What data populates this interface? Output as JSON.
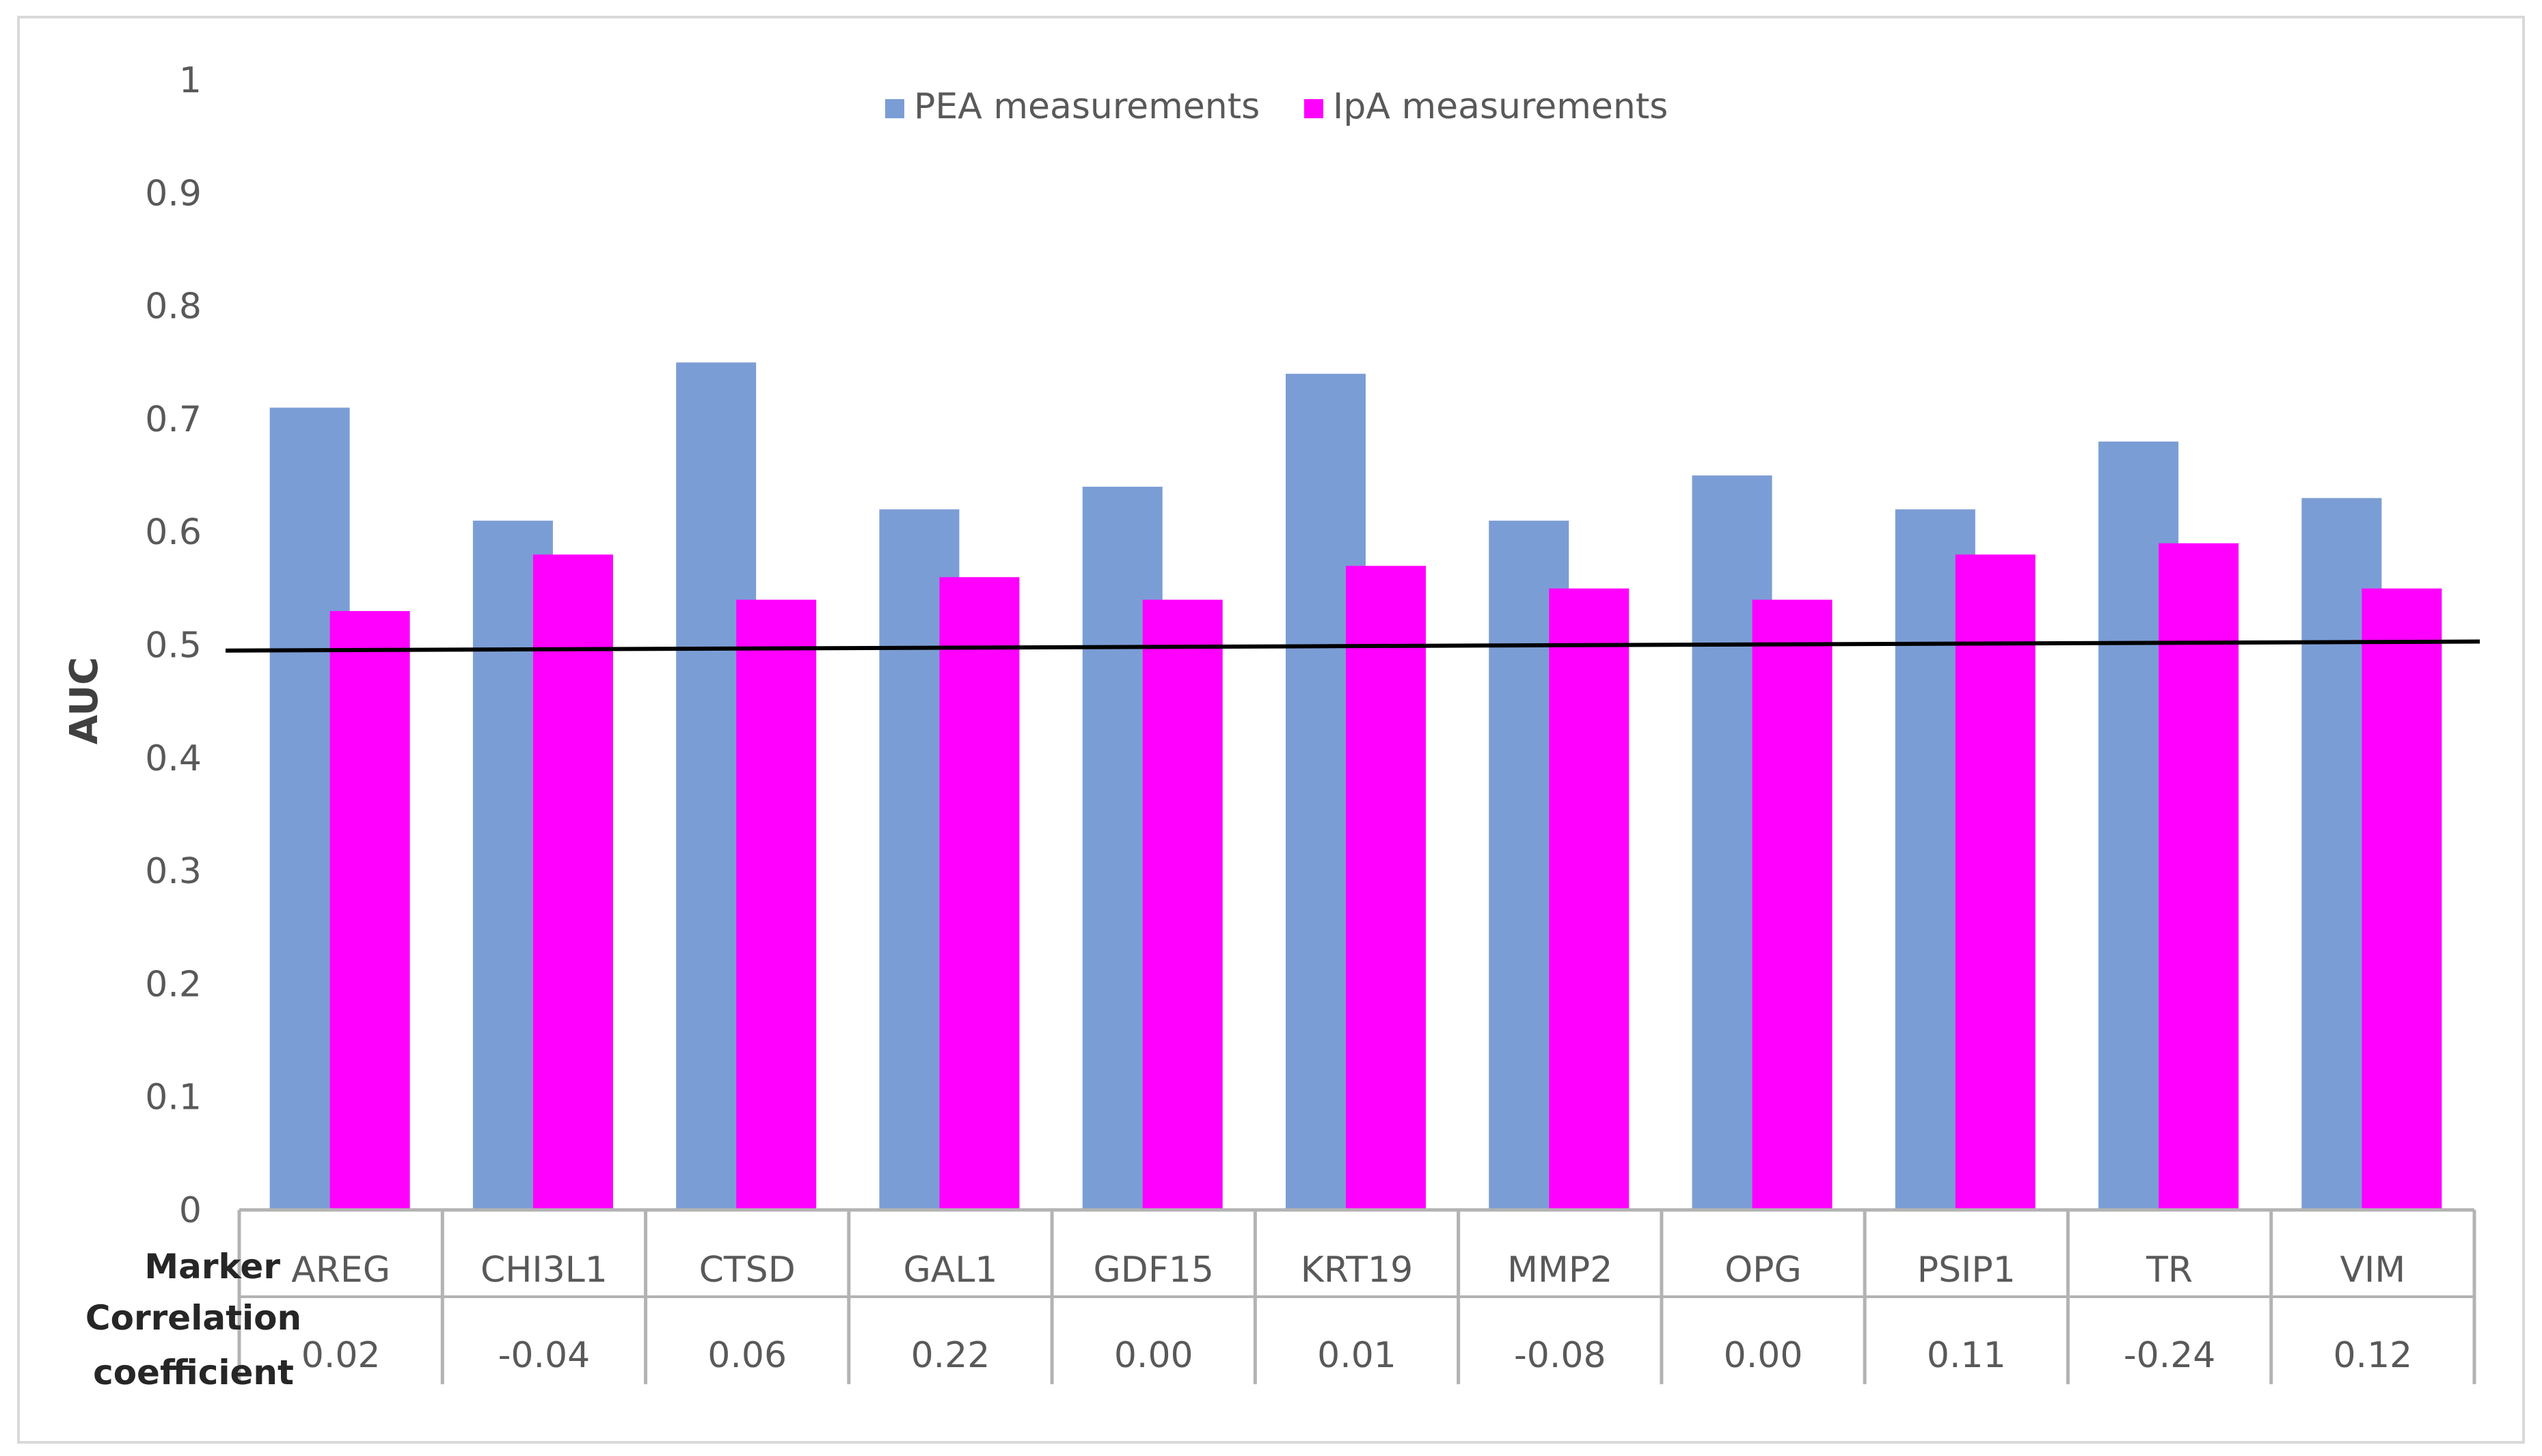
{
  "chart_data": {
    "type": "bar",
    "title": "",
    "xlabel": "",
    "ylabel": "AUC",
    "ylim": [
      0,
      1
    ],
    "yticks": [
      "0",
      "0.1",
      "0.2",
      "0.3",
      "0.4",
      "0.5",
      "0.6",
      "0.7",
      "0.8",
      "0.9",
      "1"
    ],
    "grid": false,
    "legend_position": "top-center",
    "categories": [
      "AREG",
      "CHI3L1",
      "CTSD",
      "GAL1",
      "GDF15",
      "KRT19",
      "MMP2",
      "OPG",
      "PSIP1",
      "TR",
      "VIM"
    ],
    "series": [
      {
        "name": "PEA measurements",
        "color": "#7b9dd5",
        "values": [
          0.71,
          0.61,
          0.75,
          0.62,
          0.64,
          0.74,
          0.61,
          0.65,
          0.62,
          0.68,
          0.63
        ]
      },
      {
        "name": "IpA measurements",
        "color": "#ff00ff",
        "values": [
          0.53,
          0.58,
          0.54,
          0.56,
          0.54,
          0.57,
          0.55,
          0.54,
          0.58,
          0.59,
          0.55
        ]
      }
    ],
    "reference_line": {
      "y_start": 0.495,
      "y_end": 0.503,
      "color": "#000000"
    },
    "table": {
      "row_labels": [
        "Marker",
        "Correlation coefficient"
      ],
      "correlation_coefficients": [
        "0.02",
        "-0.04",
        "0.06",
        "0.22",
        "0.00",
        "0.01",
        "-0.08",
        "0.00",
        "0.11",
        "-0.24",
        "0.12"
      ]
    }
  }
}
